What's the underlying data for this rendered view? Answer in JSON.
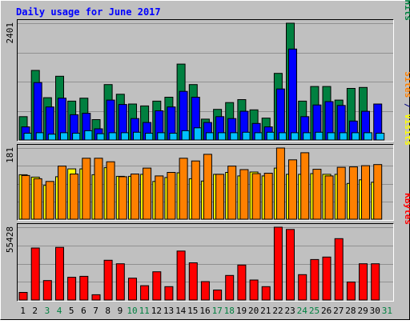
{
  "chart_data": {
    "type": "bar",
    "title": "Daily usage for June 2017",
    "categories": [
      "1",
      "2",
      "3",
      "4",
      "5",
      "6",
      "7",
      "8",
      "9",
      "10",
      "11",
      "12",
      "13",
      "14",
      "15",
      "16",
      "17",
      "18",
      "19",
      "20",
      "21",
      "22",
      "23",
      "24",
      "25",
      "26",
      "27",
      "28",
      "29",
      "30",
      "31"
    ],
    "weekend_days": [
      "3",
      "4",
      "10",
      "11",
      "17",
      "18",
      "24",
      "25",
      "31"
    ],
    "panels": [
      {
        "id": "hits-files-pages",
        "max_label": "2401",
        "ylim": [
          0,
          2401
        ],
        "series": [
          {
            "name": "Hits",
            "color": "#008040",
            "values": [
              480,
              1430,
              870,
              1310,
              800,
              860,
              420,
              1140,
              940,
              740,
              700,
              800,
              880,
              1560,
              1140,
              430,
              630,
              770,
              830,
              620,
              450,
              1370,
              2401,
              800,
              1100,
              1100,
              820,
              1060,
              1080,
              null,
              null
            ]
          },
          {
            "name": "Files",
            "color": "#0000FF",
            "values": [
              270,
              1180,
              680,
              860,
              520,
              550,
              230,
              820,
              730,
              440,
              360,
              600,
              680,
              1000,
              880,
              360,
              480,
              440,
              590,
              340,
              270,
              1050,
              1870,
              480,
              720,
              790,
              710,
              390,
              590,
              740,
              null
            ]
          },
          {
            "name": "Pages",
            "color": "#00C0FF",
            "values": [
              140,
              150,
              120,
              150,
              140,
              190,
              130,
              150,
              150,
              160,
              140,
              150,
              140,
              190,
              250,
              150,
              150,
              150,
              160,
              150,
              160,
              150,
              150,
              150,
              160,
              150,
              150,
              150,
              150,
              140,
              null
            ]
          }
        ]
      },
      {
        "id": "visits-sites",
        "max_label": "181",
        "ylim": [
          0,
          181
        ],
        "series": [
          {
            "name": "Visits",
            "color": "#FFFF00",
            "values": [
              113,
              107,
              86,
              108,
              128,
              128,
              113,
              131,
              109,
              109,
              114,
              96,
              106,
              118,
              103,
              97,
              114,
              119,
              110,
              120,
              110,
              130,
              114,
              114,
              116,
              114,
              114,
              91,
              100,
              94,
              null
            ]
          },
          {
            "name": "Sites",
            "color": "#FF8000",
            "values": [
              111,
              103,
              96,
              135,
              115,
              155,
              155,
              146,
              108,
              115,
              130,
              110,
              119,
              155,
              148,
              165,
              114,
              135,
              126,
              116,
              117,
              181,
              151,
              169,
              127,
              110,
              132,
              133,
              136,
              139,
              null
            ]
          }
        ]
      },
      {
        "id": "kbytes",
        "max_label": "55428",
        "ylim": [
          0,
          55428
        ],
        "series": [
          {
            "name": "KBytes",
            "color": "#FF0000",
            "values": [
              5800,
              39600,
              14800,
              40100,
              17300,
              18000,
              4000,
              30300,
              27600,
              16600,
              10900,
              21500,
              10200,
              37300,
              28300,
              14000,
              7600,
              18700,
              26600,
              15200,
              10200,
              55428,
              53700,
              19300,
              30800,
              32700,
              46700,
              13700,
              27600,
              27600,
              null
            ]
          }
        ]
      }
    ],
    "right_labels": [
      [
        {
          "text": "Pages",
          "color": "#00C0FF"
        },
        {
          "text": " / ",
          "color": "#000080"
        },
        {
          "text": "Files",
          "color": "#0000FF"
        },
        {
          "text": " / ",
          "color": "#000080"
        },
        {
          "text": "Hits",
          "color": "#008040"
        }
      ],
      [
        {
          "text": "Sites",
          "color": "#FF8000"
        },
        {
          "text": " / ",
          "color": "#000080"
        },
        {
          "text": "Visits",
          "color": "#FFFF00"
        }
      ],
      [
        {
          "text": "KBytes",
          "color": "#FF0000"
        }
      ]
    ],
    "colors": {
      "background": "#C0C0C0",
      "frame_outer": "#FFFFFF",
      "grid": "#909090",
      "title": "#0000FF",
      "weekday_label": "#000000",
      "weekend_label": "#008040"
    },
    "grid": true
  }
}
